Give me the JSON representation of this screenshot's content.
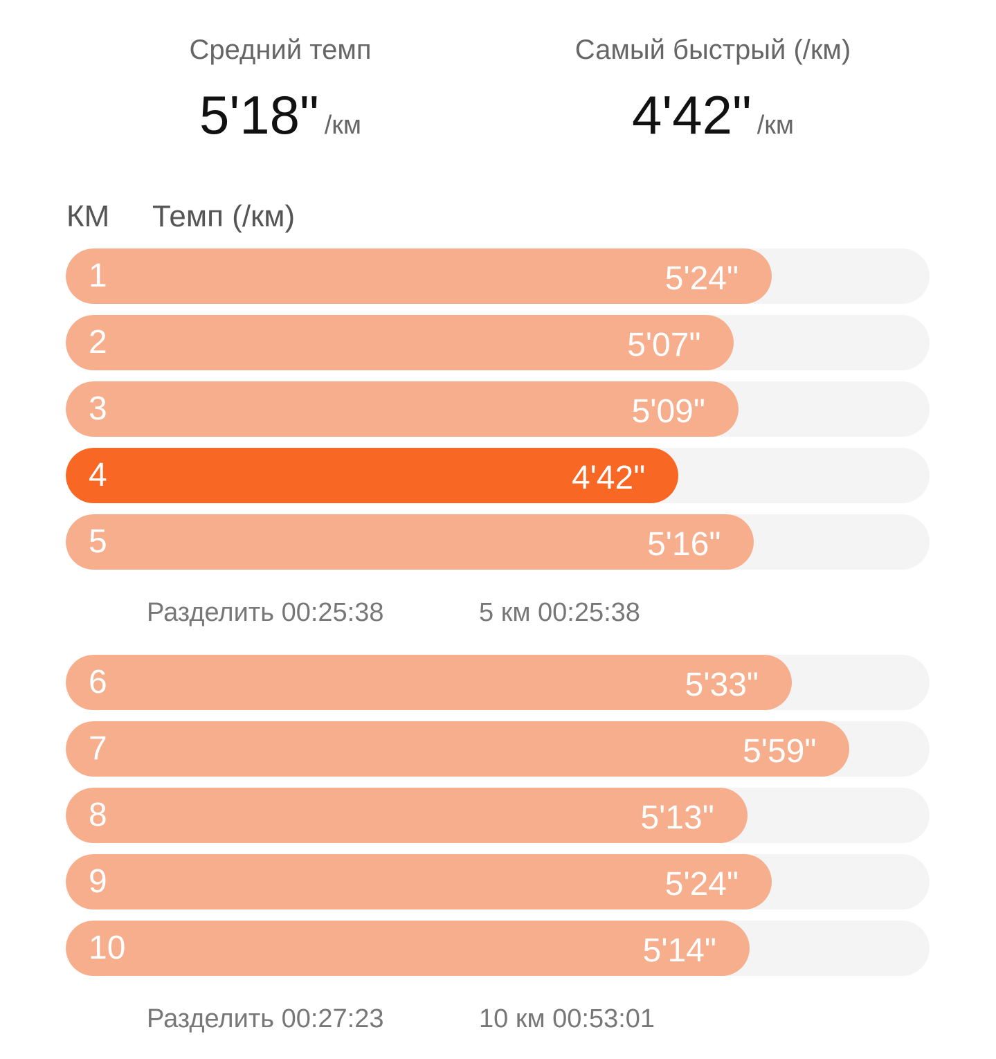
{
  "summary": {
    "avg": {
      "label": "Средний темп",
      "value": "5'18\"",
      "unit": "/км"
    },
    "fastest": {
      "label": "Самый быстрый (/км)",
      "value": "4'42\"",
      "unit": "/км"
    }
  },
  "table": {
    "col_km": "КМ",
    "col_pace": "Темп (/км)"
  },
  "colors": {
    "bar": "#f7ae8d",
    "bar_fastest": "#f96724",
    "track": "#f4f4f4"
  },
  "laps": [
    {
      "km": "1",
      "pace": "5'24\"",
      "seconds": 324,
      "fastest": false
    },
    {
      "km": "2",
      "pace": "5'07\"",
      "seconds": 307,
      "fastest": false
    },
    {
      "km": "3",
      "pace": "5'09\"",
      "seconds": 309,
      "fastest": false
    },
    {
      "km": "4",
      "pace": "4'42\"",
      "seconds": 282,
      "fastest": true
    },
    {
      "km": "5",
      "pace": "5'16\"",
      "seconds": 316,
      "fastest": false
    },
    {
      "km": "6",
      "pace": "5'33\"",
      "seconds": 333,
      "fastest": false
    },
    {
      "km": "7",
      "pace": "5'59\"",
      "seconds": 359,
      "fastest": false
    },
    {
      "km": "8",
      "pace": "5'13\"",
      "seconds": 313,
      "fastest": false
    },
    {
      "km": "9",
      "pace": "5'24\"",
      "seconds": 324,
      "fastest": false
    },
    {
      "km": "10",
      "pace": "5'14\"",
      "seconds": 314,
      "fastest": false
    }
  ],
  "splits": [
    {
      "label": "Разделить 00:25:38",
      "total": "5 км 00:25:38"
    },
    {
      "label": "Разделить 00:27:23",
      "total": "10 км 00:53:01"
    }
  ]
}
